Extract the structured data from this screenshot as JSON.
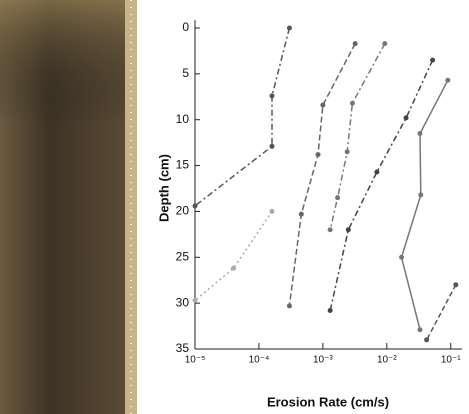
{
  "chart_data": {
    "type": "line",
    "x_label": "Erosion Rate (cm/s)",
    "y_label": "Depth (cm)",
    "xscale": "log",
    "yinvert": true,
    "xlim": [
      1e-05,
      0.15
    ],
    "ylim": [
      0,
      35
    ],
    "xticks": [
      {
        "value": 1e-05,
        "label": "10⁻⁵"
      },
      {
        "value": 0.0001,
        "label": "10⁻⁴"
      },
      {
        "value": 0.001,
        "label": "10⁻³"
      },
      {
        "value": 0.01,
        "label": "10⁻²"
      },
      {
        "value": 0.1,
        "label": "10⁻¹"
      }
    ],
    "yticks": [
      0,
      5,
      10,
      15,
      20,
      25,
      30,
      35
    ],
    "series": [
      {
        "color": "#555555",
        "dash": "6,3,2,3",
        "x": [
          0.0003,
          0.00016,
          0.00016,
          1e-05
        ],
        "values": [
          0,
          7.4,
          12.9,
          19.4
        ]
      },
      {
        "color": "#aaaaaa",
        "dash": "2,3",
        "x": [
          0.00016,
          4e-05,
          1e-05
        ],
        "values": [
          20,
          26.2,
          29.7
        ]
      },
      {
        "color": "#666666",
        "dash": "6,3",
        "x": [
          0.0032,
          0.001,
          0.00084,
          0.00046,
          0.0003
        ],
        "values": [
          1.7,
          8.4,
          13.8,
          20.3,
          30.3
        ]
      },
      {
        "color": "#777777",
        "dash": "6,3,2,3",
        "x": [
          0.0093,
          0.0029,
          0.0024,
          0.0017,
          0.0013
        ],
        "values": [
          1.7,
          8.2,
          13.5,
          18.5,
          22
        ]
      },
      {
        "color": "#444444",
        "dash": "6,3,2,3",
        "x": [
          0.052,
          0.02,
          0.007,
          0.0025,
          0.0013
        ],
        "values": [
          3.5,
          9.8,
          15.7,
          22,
          30.8
        ]
      },
      {
        "color": "#777777",
        "dash": "",
        "x": [
          0.09,
          0.033,
          0.034,
          0.017,
          0.033
        ],
        "values": [
          5.7,
          11.5,
          18.2,
          25,
          32.9
        ]
      },
      {
        "color": "#555555",
        "dash": "5,3",
        "x": [
          0.12,
          0.042
        ],
        "values": [
          28,
          34
        ]
      }
    ]
  }
}
